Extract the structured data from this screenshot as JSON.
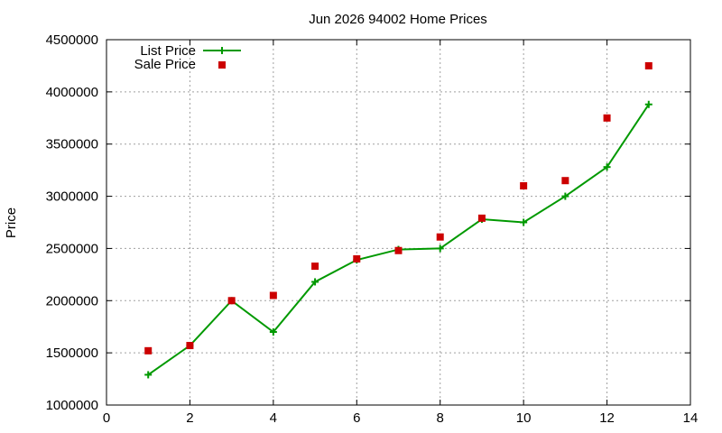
{
  "colors": {
    "list_price": "#009900",
    "sale_price": "#cc0000",
    "grid": "#a0a0a0",
    "axis": "#000000"
  },
  "chart_data": {
    "type": "line",
    "title": "Jun 2026 94002 Home Prices",
    "xlabel": "",
    "ylabel": "Price",
    "xlim": [
      0,
      14
    ],
    "ylim": [
      1000000,
      4500000
    ],
    "xticks": [
      "0",
      "2",
      "4",
      "6",
      "8",
      "10",
      "12",
      "14"
    ],
    "yticks": [
      "1000000",
      "1500000",
      "2000000",
      "2500000",
      "3000000",
      "3500000",
      "4000000",
      "4500000"
    ],
    "grid": true,
    "legend_position": "top-left",
    "series": [
      {
        "name": "List Price",
        "style": "linespoints",
        "marker": "plus",
        "x": [
          1,
          2,
          3,
          4,
          5,
          6,
          7,
          8,
          9,
          10,
          11,
          12,
          13
        ],
        "values": [
          1290000,
          1570000,
          2000000,
          1700000,
          2180000,
          2390000,
          2490000,
          2500000,
          2780000,
          2750000,
          3000000,
          3280000,
          3880000
        ]
      },
      {
        "name": "Sale Price",
        "style": "points",
        "marker": "square",
        "x": [
          1,
          2,
          3,
          4,
          5,
          6,
          7,
          8,
          9,
          10,
          11,
          12,
          13
        ],
        "values": [
          1520000,
          1570000,
          2000000,
          2050000,
          2330000,
          2400000,
          2480000,
          2610000,
          2790000,
          3100000,
          3150000,
          3750000,
          4250000
        ]
      }
    ]
  }
}
